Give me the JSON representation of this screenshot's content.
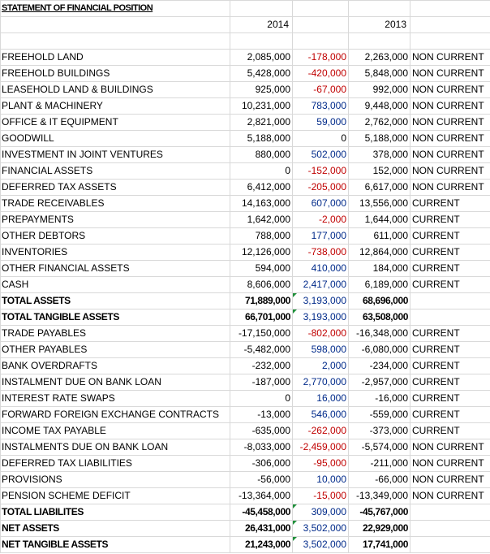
{
  "sheet": {
    "title": "STATEMENT OF FINANCIAL POSITION",
    "headers": {
      "y2014": "2014",
      "y2013": "2013"
    },
    "colors": {
      "increase": "#002a8a",
      "decrease": "#c00000",
      "note_marker": "#1f8f3a"
    },
    "rows": [
      {
        "label": "FREEHOLD LAND",
        "v2014": "2,085,000",
        "change": "-178,000",
        "change_sign": "neg",
        "v2013": "2,263,000",
        "class": "NON CURRENT",
        "bold": false,
        "marker": false
      },
      {
        "label": "FREEHOLD BUILDINGS",
        "v2014": "5,428,000",
        "change": "-420,000",
        "change_sign": "neg",
        "v2013": "5,848,000",
        "class": "NON CURRENT",
        "bold": false,
        "marker": false
      },
      {
        "label": "LEASEHOLD LAND & BUILDINGS",
        "v2014": "925,000",
        "change": "-67,000",
        "change_sign": "neg",
        "v2013": "992,000",
        "class": "NON CURRENT",
        "bold": false,
        "marker": false
      },
      {
        "label": "PLANT & MACHINERY",
        "v2014": "10,231,000",
        "change": "783,000",
        "change_sign": "pos",
        "v2013": "9,448,000",
        "class": "NON CURRENT",
        "bold": false,
        "marker": false
      },
      {
        "label": "OFFICE & IT EQUIPMENT",
        "v2014": "2,821,000",
        "change": "59,000",
        "change_sign": "pos",
        "v2013": "2,762,000",
        "class": "NON CURRENT",
        "bold": false,
        "marker": false
      },
      {
        "label": "GOODWILL",
        "v2014": "5,188,000",
        "change": "0",
        "change_sign": "zero",
        "v2013": "5,188,000",
        "class": "NON CURRENT",
        "bold": false,
        "marker": false
      },
      {
        "label": "INVESTMENT IN JOINT VENTURES",
        "v2014": "880,000",
        "change": "502,000",
        "change_sign": "pos",
        "v2013": "378,000",
        "class": "NON CURRENT",
        "bold": false,
        "marker": false
      },
      {
        "label": "FINANCIAL ASSETS",
        "v2014": "0",
        "change": "-152,000",
        "change_sign": "neg",
        "v2013": "152,000",
        "class": "NON CURRENT",
        "bold": false,
        "marker": false
      },
      {
        "label": "DEFERRED TAX ASSETS",
        "v2014": "6,412,000",
        "change": "-205,000",
        "change_sign": "neg",
        "v2013": "6,617,000",
        "class": "NON CURRENT",
        "bold": false,
        "marker": false
      },
      {
        "label": "TRADE RECEIVABLES",
        "v2014": "14,163,000",
        "change": "607,000",
        "change_sign": "pos",
        "v2013": "13,556,000",
        "class": "CURRENT",
        "bold": false,
        "marker": false
      },
      {
        "label": "PREPAYMENTS",
        "v2014": "1,642,000",
        "change": "-2,000",
        "change_sign": "neg",
        "v2013": "1,644,000",
        "class": "CURRENT",
        "bold": false,
        "marker": false
      },
      {
        "label": "OTHER DEBTORS",
        "v2014": "788,000",
        "change": "177,000",
        "change_sign": "pos",
        "v2013": "611,000",
        "class": "CURRENT",
        "bold": false,
        "marker": false
      },
      {
        "label": "INVENTORIES",
        "v2014": "12,126,000",
        "change": "-738,000",
        "change_sign": "neg",
        "v2013": "12,864,000",
        "class": "CURRENT",
        "bold": false,
        "marker": false
      },
      {
        "label": "OTHER FINANCIAL ASSETS",
        "v2014": "594,000",
        "change": "410,000",
        "change_sign": "pos",
        "v2013": "184,000",
        "class": "CURRENT",
        "bold": false,
        "marker": false
      },
      {
        "label": "CASH",
        "v2014": "8,606,000",
        "change": "2,417,000",
        "change_sign": "pos",
        "v2013": "6,189,000",
        "class": "CURRENT",
        "bold": false,
        "marker": false
      },
      {
        "label": "TOTAL ASSETS",
        "v2014": "71,889,000",
        "change": "3,193,000",
        "change_sign": "pos",
        "v2013": "68,696,000",
        "class": "",
        "bold": true,
        "marker": true
      },
      {
        "label": "TOTAL TANGIBLE ASSETS",
        "v2014": "66,701,000",
        "change": "3,193,000",
        "change_sign": "pos",
        "v2013": "63,508,000",
        "class": "",
        "bold": true,
        "marker": true
      },
      {
        "label": "TRADE PAYABLES",
        "v2014": "-17,150,000",
        "change": "-802,000",
        "change_sign": "neg",
        "v2013": "-16,348,000",
        "class": "CURRENT",
        "bold": false,
        "marker": false
      },
      {
        "label": "OTHER PAYABLES",
        "v2014": "-5,482,000",
        "change": "598,000",
        "change_sign": "pos",
        "v2013": "-6,080,000",
        "class": "CURRENT",
        "bold": false,
        "marker": false
      },
      {
        "label": "BANK OVERDRAFTS",
        "v2014": "-232,000",
        "change": "2,000",
        "change_sign": "pos",
        "v2013": "-234,000",
        "class": "CURRENT",
        "bold": false,
        "marker": false
      },
      {
        "label": "INSTALMENT DUE ON BANK LOAN",
        "v2014": "-187,000",
        "change": "2,770,000",
        "change_sign": "pos",
        "v2013": "-2,957,000",
        "class": "CURRENT",
        "bold": false,
        "marker": false
      },
      {
        "label": "INTEREST RATE SWAPS",
        "v2014": "0",
        "change": "16,000",
        "change_sign": "pos",
        "v2013": "-16,000",
        "class": "CURRENT",
        "bold": false,
        "marker": false
      },
      {
        "label": "FORWARD FOREIGN EXCHANGE CONTRACTS",
        "v2014": "-13,000",
        "change": "546,000",
        "change_sign": "pos",
        "v2013": "-559,000",
        "class": "CURRENT",
        "bold": false,
        "marker": false
      },
      {
        "label": "INCOME TAX PAYABLE",
        "v2014": "-635,000",
        "change": "-262,000",
        "change_sign": "neg",
        "v2013": "-373,000",
        "class": "CURRENT",
        "bold": false,
        "marker": false
      },
      {
        "label": "INSTALMENTS DUE ON BANK LOAN",
        "v2014": "-8,033,000",
        "change": "-2,459,000",
        "change_sign": "neg",
        "v2013": "-5,574,000",
        "class": "NON CURRENT",
        "bold": false,
        "marker": false
      },
      {
        "label": "DEFERRED TAX LIABILITIES",
        "v2014": "-306,000",
        "change": "-95,000",
        "change_sign": "neg",
        "v2013": "-211,000",
        "class": "NON CURRENT",
        "bold": false,
        "marker": false
      },
      {
        "label": "PROVISIONS",
        "v2014": "-56,000",
        "change": "10,000",
        "change_sign": "pos",
        "v2013": "-66,000",
        "class": "NON CURRENT",
        "bold": false,
        "marker": false
      },
      {
        "label": "PENSION SCHEME DEFICIT",
        "v2014": "-13,364,000",
        "change": "-15,000",
        "change_sign": "neg",
        "v2013": "-13,349,000",
        "class": "NON CURRENT",
        "bold": false,
        "marker": false
      },
      {
        "label": "TOTAL LIABILITES",
        "v2014": "-45,458,000",
        "change": "309,000",
        "change_sign": "pos",
        "v2013": "-45,767,000",
        "class": "",
        "bold": true,
        "marker": true
      },
      {
        "label": "NET ASSETS",
        "v2014": "26,431,000",
        "change": "3,502,000",
        "change_sign": "pos",
        "v2013": "22,929,000",
        "class": "",
        "bold": true,
        "marker": true
      },
      {
        "label": "NET TANGIBLE ASSETS",
        "v2014": "21,243,000",
        "change": "3,502,000",
        "change_sign": "pos",
        "v2013": "17,741,000",
        "class": "",
        "bold": true,
        "marker": true
      }
    ]
  }
}
